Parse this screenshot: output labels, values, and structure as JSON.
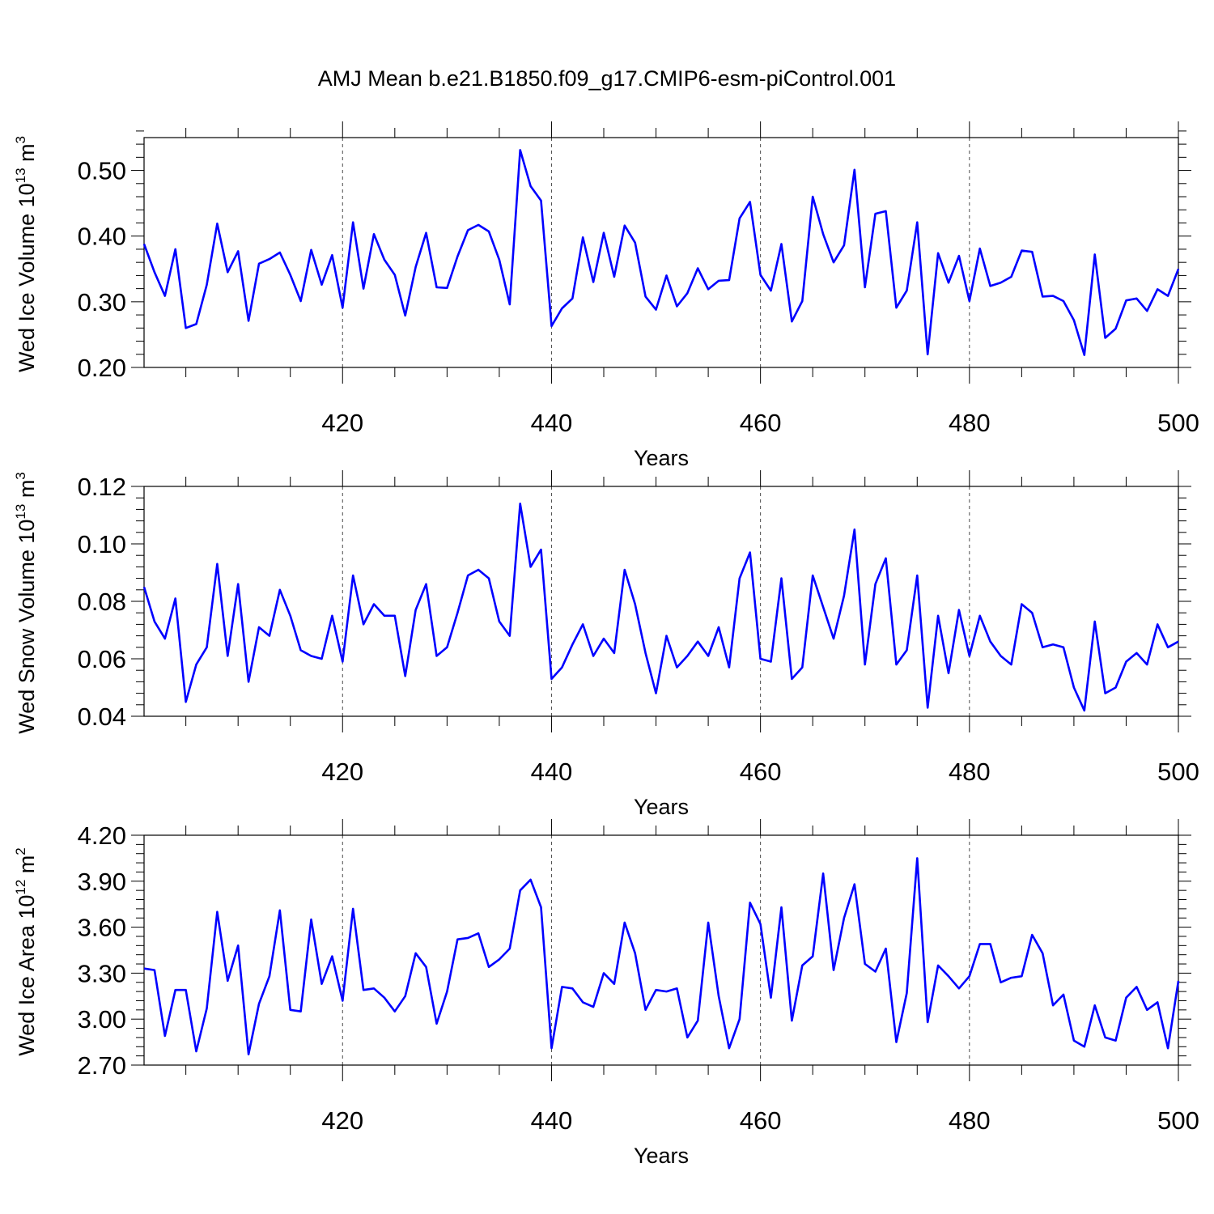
{
  "title": "AMJ Mean b.e21.B1850.f09_g17.CMIP6-esm-piControl.001",
  "colors": {
    "line": "#0000ff",
    "axis": "#000000",
    "grid": "#000000"
  },
  "chart_data": [
    {
      "type": "line",
      "xlabel": "Years",
      "ylabel_parts": [
        "Wed Ice Volume 10",
        "13",
        " m",
        "3"
      ],
      "xlim": [
        401,
        500
      ],
      "ylim": [
        0.2,
        0.55
      ],
      "xticks": [
        420,
        440,
        460,
        480,
        500
      ],
      "yticks": [
        0.2,
        0.3,
        0.4,
        0.5
      ],
      "ytick_labels": [
        "0.20",
        "0.30",
        "0.40",
        "0.50"
      ],
      "grid": "vertical dashed at major x ticks",
      "x": [
        401,
        402,
        403,
        404,
        405,
        406,
        407,
        408,
        409,
        410,
        411,
        412,
        413,
        414,
        415,
        416,
        417,
        418,
        419,
        420,
        421,
        422,
        423,
        424,
        425,
        426,
        427,
        428,
        429,
        430,
        431,
        432,
        433,
        434,
        435,
        436,
        437,
        438,
        439,
        440,
        441,
        442,
        443,
        444,
        445,
        446,
        447,
        448,
        449,
        450,
        451,
        452,
        453,
        454,
        455,
        456,
        457,
        458,
        459,
        460,
        461,
        462,
        463,
        464,
        465,
        466,
        467,
        468,
        469,
        470,
        471,
        472,
        473,
        474,
        475,
        476,
        477,
        478,
        479,
        480,
        481,
        482,
        483,
        484,
        485,
        486,
        487,
        488,
        489,
        490,
        491,
        492,
        493,
        494,
        495,
        496,
        497,
        498,
        499,
        500
      ],
      "y": [
        0.388,
        0.345,
        0.309,
        0.38,
        0.26,
        0.266,
        0.326,
        0.419,
        0.345,
        0.377,
        0.271,
        0.358,
        0.365,
        0.375,
        0.341,
        0.301,
        0.379,
        0.326,
        0.371,
        0.291,
        0.421,
        0.32,
        0.403,
        0.364,
        0.341,
        0.279,
        0.353,
        0.405,
        0.322,
        0.321,
        0.369,
        0.409,
        0.417,
        0.407,
        0.364,
        0.296,
        0.531,
        0.476,
        0.454,
        0.263,
        0.29,
        0.305,
        0.398,
        0.33,
        0.405,
        0.338,
        0.416,
        0.39,
        0.308,
        0.288,
        0.34,
        0.293,
        0.313,
        0.351,
        0.319,
        0.332,
        0.333,
        0.427,
        0.452,
        0.341,
        0.317,
        0.388,
        0.27,
        0.301,
        0.46,
        0.403,
        0.36,
        0.386,
        0.501,
        0.322,
        0.434,
        0.438,
        0.291,
        0.317,
        0.421,
        0.22,
        0.374,
        0.329,
        0.37,
        0.301,
        0.381,
        0.324,
        0.329,
        0.338,
        0.378,
        0.376,
        0.308,
        0.309,
        0.301,
        0.272,
        0.219,
        0.372,
        0.245,
        0.259,
        0.302,
        0.305,
        0.286,
        0.319,
        0.309,
        0.35
      ]
    },
    {
      "type": "line",
      "xlabel": "Years",
      "ylabel_parts": [
        "Wed Snow Volume 10",
        "13",
        " m",
        "3"
      ],
      "xlim": [
        401,
        500
      ],
      "ylim": [
        0.04,
        0.12
      ],
      "xticks": [
        420,
        440,
        460,
        480,
        500
      ],
      "yticks": [
        0.04,
        0.06,
        0.08,
        0.1,
        0.12
      ],
      "ytick_labels": [
        "0.04",
        "0.06",
        "0.08",
        "0.10",
        "0.12"
      ],
      "grid": "vertical dashed at major x ticks",
      "x": [
        401,
        402,
        403,
        404,
        405,
        406,
        407,
        408,
        409,
        410,
        411,
        412,
        413,
        414,
        415,
        416,
        417,
        418,
        419,
        420,
        421,
        422,
        423,
        424,
        425,
        426,
        427,
        428,
        429,
        430,
        431,
        432,
        433,
        434,
        435,
        436,
        437,
        438,
        439,
        440,
        441,
        442,
        443,
        444,
        445,
        446,
        447,
        448,
        449,
        450,
        451,
        452,
        453,
        454,
        455,
        456,
        457,
        458,
        459,
        460,
        461,
        462,
        463,
        464,
        465,
        466,
        467,
        468,
        469,
        470,
        471,
        472,
        473,
        474,
        475,
        476,
        477,
        478,
        479,
        480,
        481,
        482,
        483,
        484,
        485,
        486,
        487,
        488,
        489,
        490,
        491,
        492,
        493,
        494,
        495,
        496,
        497,
        498,
        499,
        500
      ],
      "y": [
        0.085,
        0.073,
        0.067,
        0.081,
        0.045,
        0.058,
        0.064,
        0.093,
        0.061,
        0.086,
        0.052,
        0.071,
        0.068,
        0.084,
        0.075,
        0.063,
        0.061,
        0.06,
        0.075,
        0.059,
        0.089,
        0.072,
        0.079,
        0.075,
        0.075,
        0.054,
        0.077,
        0.086,
        0.061,
        0.064,
        0.076,
        0.089,
        0.091,
        0.088,
        0.073,
        0.068,
        0.114,
        0.092,
        0.098,
        0.053,
        0.057,
        0.065,
        0.072,
        0.061,
        0.067,
        0.062,
        0.091,
        0.079,
        0.062,
        0.048,
        0.068,
        0.057,
        0.061,
        0.066,
        0.061,
        0.071,
        0.057,
        0.088,
        0.097,
        0.06,
        0.059,
        0.088,
        0.053,
        0.057,
        0.089,
        0.078,
        0.067,
        0.082,
        0.105,
        0.058,
        0.086,
        0.095,
        0.058,
        0.063,
        0.089,
        0.043,
        0.075,
        0.055,
        0.077,
        0.061,
        0.075,
        0.066,
        0.061,
        0.058,
        0.079,
        0.076,
        0.064,
        0.065,
        0.064,
        0.05,
        0.042,
        0.073,
        0.048,
        0.05,
        0.059,
        0.062,
        0.058,
        0.072,
        0.064,
        0.066
      ]
    },
    {
      "type": "line",
      "xlabel": "Years",
      "ylabel_parts": [
        "Wed Ice Area 10",
        "12",
        " m",
        "2"
      ],
      "xlim": [
        401,
        500
      ],
      "ylim": [
        2.7,
        4.2
      ],
      "xticks": [
        420,
        440,
        460,
        480,
        500
      ],
      "yticks": [
        2.7,
        3.0,
        3.3,
        3.6,
        3.9,
        4.2
      ],
      "ytick_labels": [
        "2.70",
        "3.00",
        "3.30",
        "3.60",
        "3.90",
        "4.20"
      ],
      "grid": "vertical dashed at major x ticks",
      "x": [
        401,
        402,
        403,
        404,
        405,
        406,
        407,
        408,
        409,
        410,
        411,
        412,
        413,
        414,
        415,
        416,
        417,
        418,
        419,
        420,
        421,
        422,
        423,
        424,
        425,
        426,
        427,
        428,
        429,
        430,
        431,
        432,
        433,
        434,
        435,
        436,
        437,
        438,
        439,
        440,
        441,
        442,
        443,
        444,
        445,
        446,
        447,
        448,
        449,
        450,
        451,
        452,
        453,
        454,
        455,
        456,
        457,
        458,
        459,
        460,
        461,
        462,
        463,
        464,
        465,
        466,
        467,
        468,
        469,
        470,
        471,
        472,
        473,
        474,
        475,
        476,
        477,
        478,
        479,
        480,
        481,
        482,
        483,
        484,
        485,
        486,
        487,
        488,
        489,
        490,
        491,
        492,
        493,
        494,
        495,
        496,
        497,
        498,
        499,
        500
      ],
      "y": [
        3.33,
        3.32,
        2.89,
        3.19,
        3.19,
        2.79,
        3.07,
        3.7,
        3.25,
        3.48,
        2.77,
        3.1,
        3.28,
        3.71,
        3.06,
        3.05,
        3.65,
        3.23,
        3.41,
        3.12,
        3.72,
        3.19,
        3.2,
        3.14,
        3.05,
        3.15,
        3.43,
        3.34,
        2.97,
        3.18,
        3.52,
        3.53,
        3.56,
        3.34,
        3.39,
        3.46,
        3.84,
        3.91,
        3.73,
        2.81,
        3.21,
        3.2,
        3.11,
        3.08,
        3.3,
        3.23,
        3.63,
        3.43,
        3.06,
        3.19,
        3.18,
        3.2,
        2.88,
        2.99,
        3.63,
        3.15,
        2.81,
        3.0,
        3.76,
        3.62,
        3.14,
        3.73,
        2.99,
        3.35,
        3.41,
        3.95,
        3.32,
        3.66,
        3.88,
        3.36,
        3.31,
        3.46,
        2.85,
        3.17,
        4.05,
        2.98,
        3.35,
        3.28,
        3.2,
        3.28,
        3.49,
        3.49,
        3.24,
        3.27,
        3.28,
        3.55,
        3.43,
        3.09,
        3.16,
        2.86,
        2.82,
        3.09,
        2.88,
        2.86,
        3.14,
        3.21,
        3.06,
        3.11,
        2.81,
        3.25
      ]
    }
  ]
}
